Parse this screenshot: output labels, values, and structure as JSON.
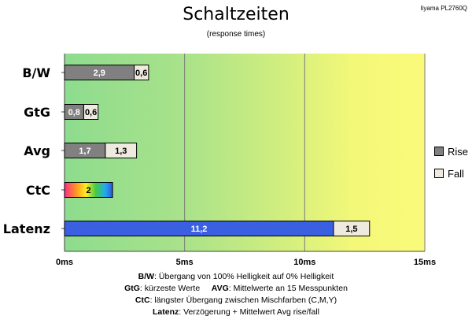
{
  "header": {
    "title": "Schaltzeiten",
    "subtitle": "(response times)",
    "model": "Iiyama PL2760Q"
  },
  "legend": {
    "rise_label": "Rise",
    "fall_label": "Fall"
  },
  "footer": {
    "line1_key": "B/W",
    "line1_text": ":  Übergang von 100% Helligkeit auf 0% Helligkeit",
    "line2_key_a": "GtG",
    "line2_text_a": ": kürzeste  Werte",
    "line2_key_b": "AVG",
    "line2_text_b": ": Mittelwerte  an 15 Messpunkten",
    "line3_key": "CtC",
    "line3_text": ": längster Übergang  zwischen Mischfarben  (C,M,Y)",
    "line4_key": "Latenz",
    "line4_text": ": Verzögerung  + Mittelwert  Avg rise/fall"
  },
  "chart_data": {
    "type": "bar",
    "orientation": "horizontal",
    "stacked": true,
    "title": "Schaltzeiten",
    "subtitle": "(response times)",
    "categories": [
      "B/W",
      "GtG",
      "Avg",
      "CtC",
      "Latenz"
    ],
    "series": [
      {
        "name": "Rise",
        "values": [
          2.9,
          0.8,
          1.7,
          2,
          11.2
        ]
      },
      {
        "name": "Fall",
        "values": [
          0.6,
          0.6,
          1.3,
          null,
          1.5
        ]
      }
    ],
    "value_labels": {
      "Rise": [
        "2,9",
        "0,8",
        "1,7",
        "2",
        "11,2"
      ],
      "Fall": [
        "0,6",
        "0,6",
        "1,3",
        null,
        "1,5"
      ]
    },
    "xlim": [
      0,
      15
    ],
    "x_ticks": [
      0,
      5,
      10,
      15
    ],
    "x_tick_labels": [
      "0ms",
      "5ms",
      "10ms",
      "15ms"
    ],
    "grid": true,
    "legend_position": "right",
    "background_gradient": "green-to-yellow",
    "colors": {
      "rise": "#808080",
      "fall": "#eeeae0",
      "latenz_rise": "#3a5fe0",
      "bg_green": "#8fdc8c",
      "bg_yellow": "#f8f978"
    }
  }
}
